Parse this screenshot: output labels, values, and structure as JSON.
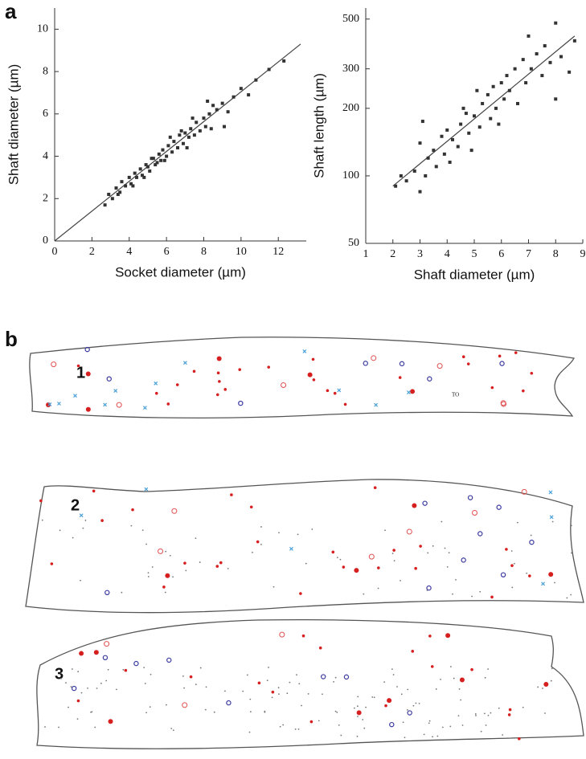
{
  "chart_data": [
    {
      "type": "scatter",
      "xlabel": "Socket diameter (µm)",
      "ylabel": "Shaft diameter (µm)",
      "color": "#333333",
      "xlim": [
        0,
        13.5
      ],
      "ylim": [
        0,
        11
      ],
      "xticks": [
        0,
        2,
        4,
        6,
        8,
        10,
        12
      ],
      "yticks": [
        0,
        2,
        4,
        6,
        8,
        10
      ],
      "x": [
        2.7,
        2.9,
        3.1,
        3.3,
        3.5,
        3.6,
        3.8,
        4.0,
        4.1,
        4.3,
        4.4,
        4.6,
        4.7,
        4.9,
        5.0,
        5.1,
        5.3,
        5.4,
        5.6,
        5.7,
        5.8,
        6.0,
        6.1,
        6.3,
        6.4,
        6.6,
        6.7,
        6.9,
        7.0,
        7.2,
        7.3,
        7.5,
        7.6,
        7.8,
        8.0,
        8.1,
        8.3,
        8.5,
        8.7,
        9.0,
        9.3,
        9.6,
        10.0,
        10.4,
        10.8,
        11.5,
        12.3,
        4.2,
        5.2,
        6.2,
        7.4,
        8.2,
        3.4,
        4.8,
        5.9,
        7.1,
        8.4,
        9.1,
        6.8,
        5.5
      ],
      "values": [
        1.7,
        2.2,
        2.0,
        2.5,
        2.3,
        2.8,
        2.6,
        3.0,
        2.7,
        3.2,
        3.0,
        3.4,
        3.1,
        3.6,
        3.5,
        3.3,
        3.9,
        3.6,
        4.1,
        3.8,
        4.3,
        4.0,
        4.5,
        4.2,
        4.7,
        4.4,
        5.0,
        4.6,
        5.1,
        4.9,
        5.3,
        5.0,
        5.6,
        5.2,
        5.8,
        5.4,
        6.0,
        6.4,
        6.2,
        6.5,
        6.1,
        6.8,
        7.2,
        6.9,
        7.6,
        8.1,
        8.5,
        2.6,
        3.9,
        4.9,
        5.8,
        6.6,
        2.2,
        3.0,
        3.8,
        4.4,
        5.3,
        5.4,
        5.2,
        3.7
      ],
      "fit_line": {
        "x": [
          0,
          13.2
        ],
        "y": [
          0,
          9.3
        ]
      }
    },
    {
      "type": "scatter",
      "xlabel": "Shaft diameter (µm)",
      "ylabel": "Shaft length (µm)",
      "color": "#333333",
      "log_y": true,
      "xlim": [
        1,
        9
      ],
      "ylim": [
        50,
        560
      ],
      "xticks": [
        1,
        2,
        3,
        4,
        5,
        6,
        7,
        8,
        9
      ],
      "yticks": [
        50,
        100,
        200,
        300,
        500
      ],
      "x": [
        2.1,
        2.3,
        2.5,
        2.8,
        3.0,
        3.0,
        3.1,
        3.3,
        3.5,
        3.6,
        3.8,
        3.9,
        4.0,
        4.1,
        4.2,
        4.4,
        4.5,
        4.6,
        4.8,
        4.9,
        5.0,
        5.1,
        5.2,
        5.3,
        5.5,
        5.6,
        5.7,
        5.8,
        6.0,
        6.1,
        6.2,
        6.3,
        6.5,
        6.6,
        6.8,
        6.9,
        7.0,
        7.1,
        7.3,
        7.5,
        7.6,
        7.8,
        8.0,
        8.0,
        8.2,
        8.5,
        8.7,
        3.2,
        4.7,
        5.9
      ],
      "values": [
        90,
        100,
        95,
        105,
        85,
        140,
        175,
        120,
        130,
        110,
        150,
        125,
        160,
        115,
        145,
        135,
        170,
        200,
        155,
        130,
        185,
        240,
        165,
        210,
        230,
        180,
        250,
        200,
        260,
        220,
        280,
        240,
        300,
        210,
        330,
        260,
        420,
        300,
        350,
        280,
        380,
        320,
        480,
        220,
        340,
        290,
        400,
        100,
        190,
        170
      ],
      "fit_line": {
        "x": [
          2,
          8.7
        ],
        "y": [
          90,
          420
        ]
      }
    }
  ],
  "figure": {
    "panel_a": "a",
    "panel_b": "b",
    "outlines": [
      {
        "label": "1"
      },
      {
        "label": "2"
      },
      {
        "label": "3"
      }
    ],
    "annotation": "TO"
  }
}
